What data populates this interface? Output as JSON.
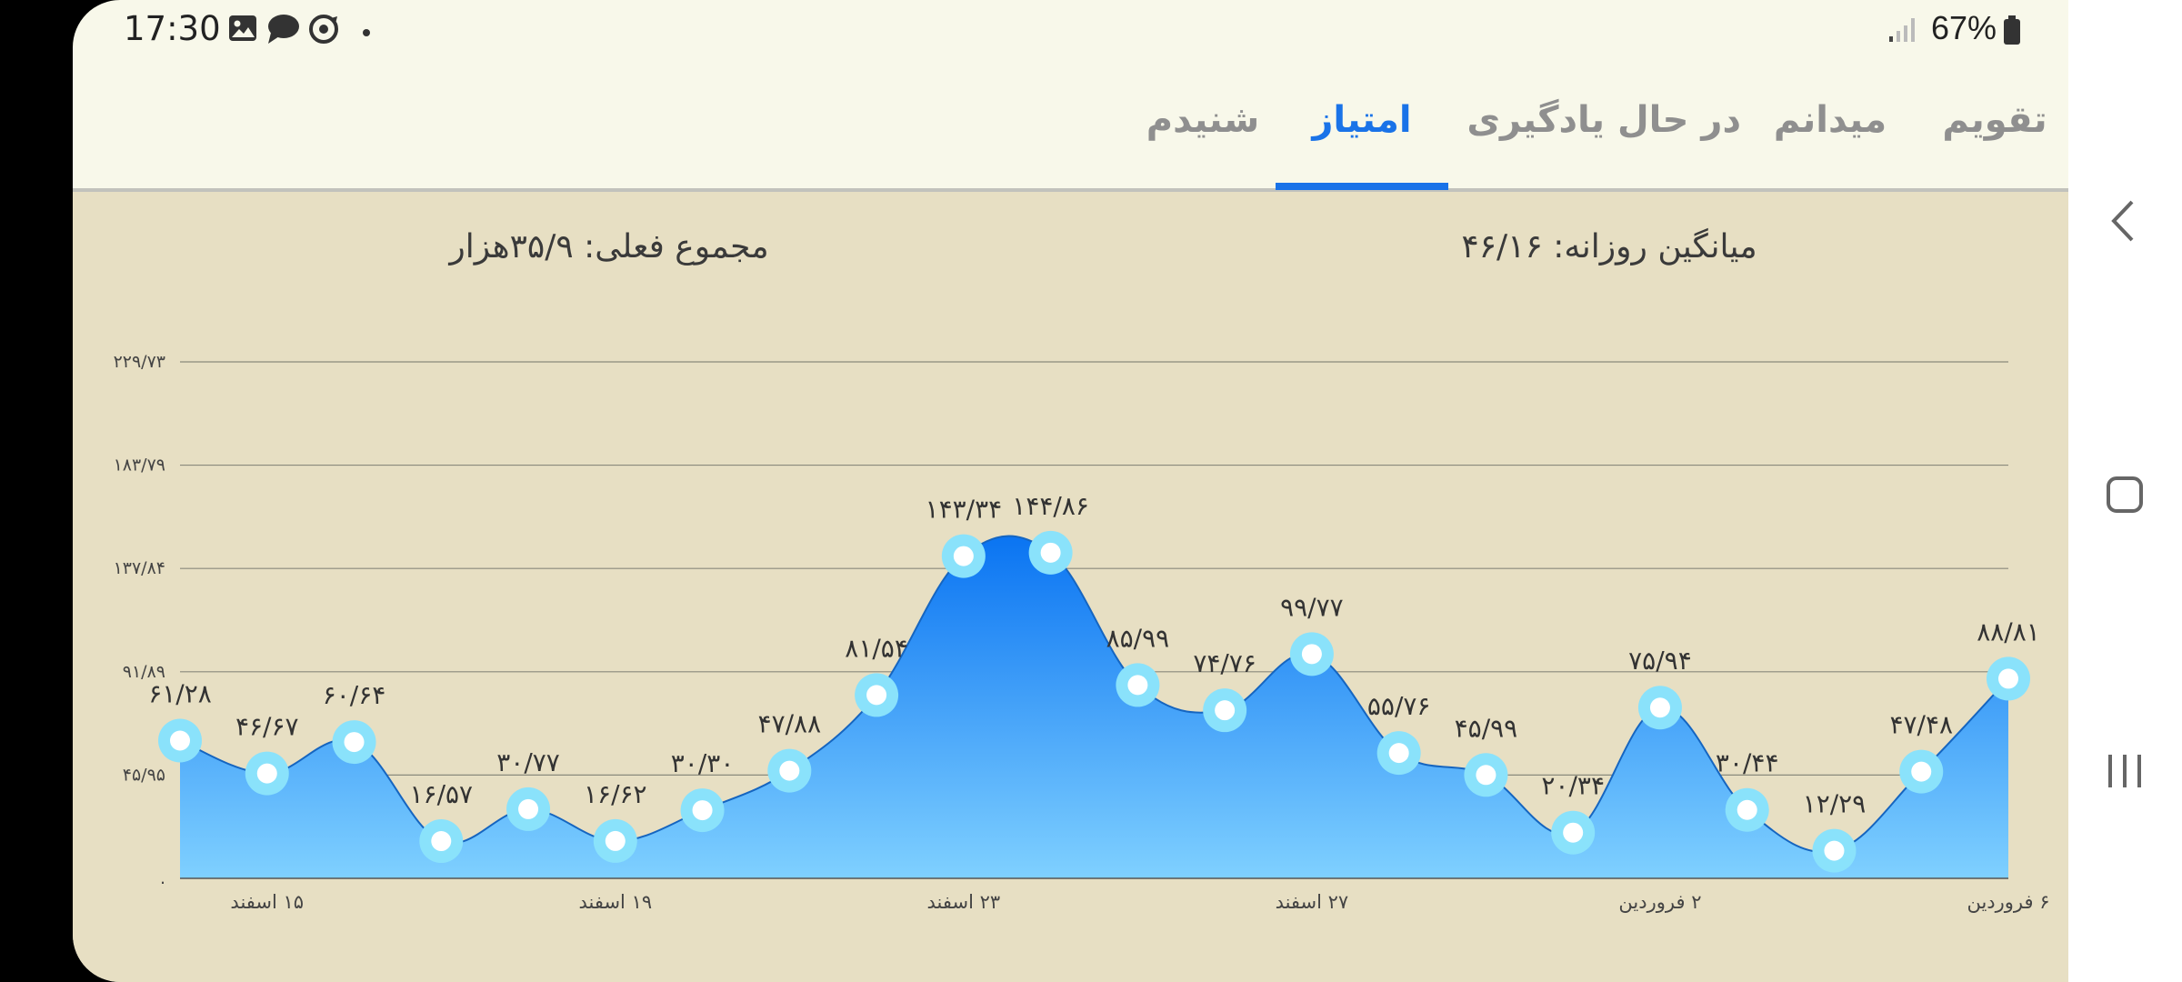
{
  "status_bar": {
    "time": "17:30",
    "notification_icons": [
      "image-icon",
      "chat-bubble-icon",
      "sync-icon",
      "dot-icon"
    ],
    "signal_icon": "signal-icon",
    "battery_percent": "67%",
    "battery_icon": "battery-icon"
  },
  "tabs": [
    {
      "label": "تقویم",
      "active": false
    },
    {
      "label": "میدانم",
      "active": false
    },
    {
      "label": "در حال یادگیری",
      "active": false
    },
    {
      "label": "امتیاز",
      "active": true
    },
    {
      "label": "شنیدم",
      "active": false
    }
  ],
  "summary": {
    "daily_average": "میانگین روزانه: ۴۶/۱۶",
    "current_total": "مجموع فعلی: ۳۵/۹هزار"
  },
  "colors": {
    "accent": "#1a73e8",
    "screen_bg": "#f8f8ea",
    "chart_panel_bg": "#e7dfc3",
    "area_top": "#0a74f2",
    "area_bottom": "#7fd0ff",
    "point_ring": "#8ae2fb",
    "point_center": "#ffffff"
  },
  "chart_data": {
    "type": "area",
    "smooth": true,
    "y_ticks": [
      0,
      45.95,
      91.89,
      137.84,
      183.79,
      229.73
    ],
    "y_tick_labels": [
      ".",
      "۴۵/۹۵",
      "۹۱/۸۹",
      "۱۳۷/۸۴",
      "۱۸۳/۷۹",
      "۲۲۹/۷۳"
    ],
    "ylim": [
      0,
      229.73
    ],
    "grid": true,
    "x_tick_labels": [
      {
        "index": 1,
        "label": "۱۵ اسفند"
      },
      {
        "index": 5,
        "label": "۱۹ اسفند"
      },
      {
        "index": 9,
        "label": "۲۳ اسفند"
      },
      {
        "index": 13,
        "label": "۲۷ اسفند"
      },
      {
        "index": 17,
        "label": "۲ فروردین"
      },
      {
        "index": 21,
        "label": "۶ فروردین"
      }
    ],
    "values": [
      61.28,
      46.67,
      60.64,
      16.57,
      30.77,
      16.62,
      30.3,
      47.88,
      81.54,
      143.34,
      144.86,
      85.99,
      74.76,
      99.77,
      55.76,
      45.99,
      20.34,
      75.94,
      30.44,
      12.29,
      47.48,
      88.81
    ],
    "value_labels": [
      "۶۱/۲۸",
      "۴۶/۶۷",
      "۶۰/۶۴",
      "۱۶/۵۷",
      "۳۰/۷۷",
      "۱۶/۶۲",
      "۳۰/۳۰",
      "۴۷/۸۸",
      "۸۱/۵۴",
      "۱۴۳/۳۴",
      "۱۴۴/۸۶",
      "۸۵/۹۹",
      "۷۴/۷۶",
      "۹۹/۷۷",
      "۵۵/۷۶",
      "۴۵/۹۹",
      "۲۰/۳۴",
      "۷۵/۹۴",
      "۳۰/۴۴",
      "۱۲/۲۹",
      "۴۷/۴۸",
      "۸۸/۸۱"
    ]
  },
  "nav_bar": {
    "icons": [
      "back-chevron-icon",
      "home-square-icon",
      "recents-icon"
    ]
  }
}
